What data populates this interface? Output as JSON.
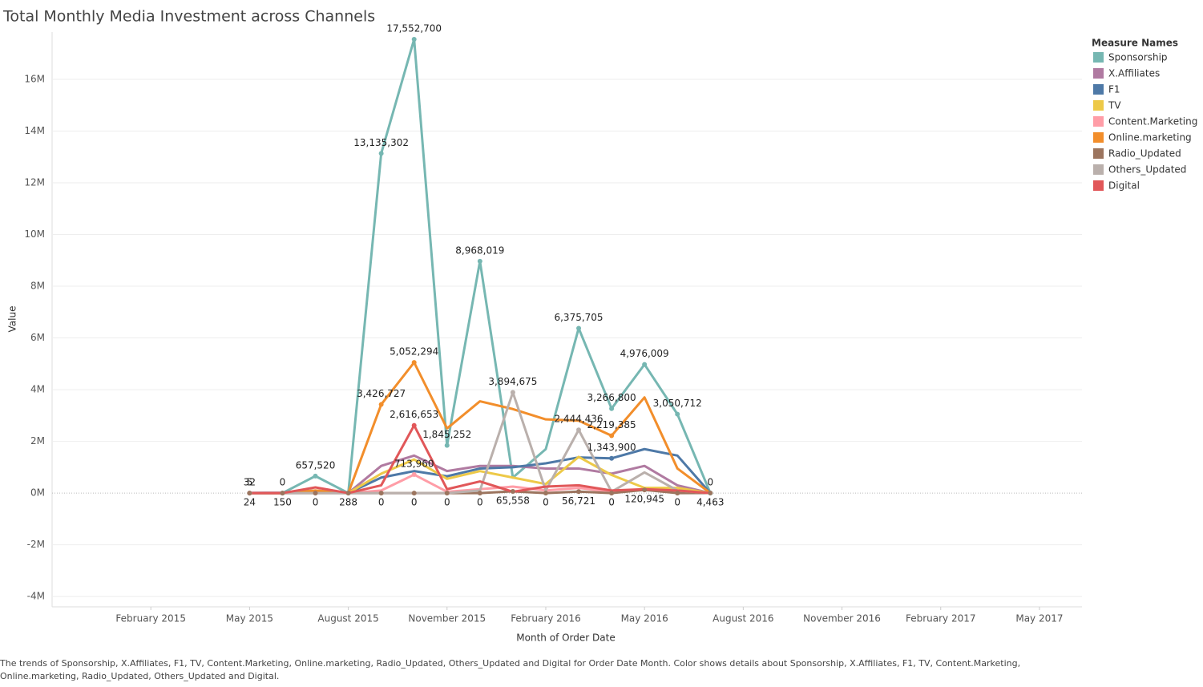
{
  "chart_data": {
    "type": "line",
    "title": "Total Monthly Media Investment across Channels",
    "x_label": "Month of Order Date",
    "y_label": "Value",
    "legend_title": "Measure Names",
    "footnote": "The trends of Sponsorship, X.Affiliates, F1, TV, Content.Marketing, Online.marketing, Radio_Updated, Others_Updated and Digital for Order Date Month.  Color shows details about Sponsorship, X.Affiliates, F1, TV, Content.Marketing, Online.marketing, Radio_Updated, Others_Updated and Digital.",
    "x": [
      "2015-05",
      "2015-06",
      "2015-07",
      "2015-08",
      "2015-09",
      "2015-10",
      "2015-11",
      "2015-12",
      "2016-01",
      "2016-02",
      "2016-03",
      "2016-04",
      "2016-05",
      "2016-06",
      "2016-07"
    ],
    "xlim": [
      "2014-11",
      "2017-06"
    ],
    "xticks": [
      {
        "value": "2015-02",
        "label": "February 2015"
      },
      {
        "value": "2015-05",
        "label": "May 2015"
      },
      {
        "value": "2015-08",
        "label": "August 2015"
      },
      {
        "value": "2015-11",
        "label": "November 2015"
      },
      {
        "value": "2016-02",
        "label": "February 2016"
      },
      {
        "value": "2016-05",
        "label": "May 2016"
      },
      {
        "value": "2016-08",
        "label": "August 2016"
      },
      {
        "value": "2016-11",
        "label": "November 2016"
      },
      {
        "value": "2017-02",
        "label": "February 2017"
      },
      {
        "value": "2017-05",
        "label": "May 2017"
      }
    ],
    "ylim": [
      -4400000,
      17830000
    ],
    "yticks": [
      {
        "value": -4000000,
        "label": "-4M"
      },
      {
        "value": -2000000,
        "label": "-2M"
      },
      {
        "value": 0,
        "label": "0M"
      },
      {
        "value": 2000000,
        "label": "2M"
      },
      {
        "value": 4000000,
        "label": "4M"
      },
      {
        "value": 6000000,
        "label": "6M"
      },
      {
        "value": 8000000,
        "label": "8M"
      },
      {
        "value": 10000000,
        "label": "10M"
      },
      {
        "value": 12000000,
        "label": "12M"
      },
      {
        "value": 14000000,
        "label": "14M"
      },
      {
        "value": 16000000,
        "label": "16M"
      }
    ],
    "grid": true,
    "legend": "right",
    "series": [
      {
        "name": "Sponsorship",
        "color": "#76b7b2",
        "values": [
          5,
          0,
          657520,
          0,
          13135302,
          17552700,
          1845252,
          8968019,
          600000,
          1700000,
          6375705,
          3266800,
          4976009,
          3050712,
          0
        ],
        "value_labels": [
          "5",
          "0",
          "657,520",
          null,
          "13,135,302",
          "17,552,700",
          "1,845,252",
          "8,968,019",
          null,
          null,
          "6,375,705",
          "3,266,800",
          "4,976,009",
          "3,050,712",
          "0"
        ]
      },
      {
        "name": "X.Affiliates",
        "color": "#b07aa1",
        "values": [
          10000,
          20000,
          100000,
          0,
          1050000,
          1450000,
          850000,
          1050000,
          1050000,
          950000,
          950000,
          750000,
          1050000,
          300000,
          0
        ]
      },
      {
        "name": "F1",
        "color": "#4e79a7",
        "values": [
          0,
          0,
          50000,
          0,
          600000,
          850000,
          650000,
          950000,
          1000000,
          1150000,
          1380000,
          1343900,
          1700000,
          1450000,
          0
        ],
        "value_labels": [
          null,
          null,
          null,
          null,
          null,
          null,
          null,
          null,
          null,
          null,
          null,
          "1,343,900",
          null,
          null,
          null
        ]
      },
      {
        "name": "TV",
        "color": "#edc948",
        "values": [
          0,
          0,
          20000,
          0,
          750000,
          1300000,
          550000,
          850000,
          600000,
          350000,
          1400000,
          700000,
          200000,
          200000,
          0
        ]
      },
      {
        "name": "Content.Marketing",
        "color": "#ff9da7",
        "values": [
          32,
          0,
          50000,
          0,
          100000,
          713960,
          50000,
          150000,
          250000,
          100000,
          200000,
          50000,
          150000,
          50000,
          0
        ],
        "value_labels": [
          "32",
          null,
          null,
          null,
          null,
          "713,960",
          null,
          null,
          null,
          null,
          null,
          null,
          null,
          null,
          null
        ]
      },
      {
        "name": "Online.marketing",
        "color": "#f28e2b",
        "values": [
          0,
          0,
          100000,
          0,
          3426727,
          5052294,
          2500000,
          3550000,
          3250000,
          2850000,
          2800000,
          2219385,
          3700000,
          950000,
          0
        ],
        "value_labels": [
          null,
          null,
          null,
          null,
          "3,426,727",
          "5,052,294",
          null,
          null,
          null,
          null,
          null,
          "2,219,385",
          null,
          null,
          null
        ]
      },
      {
        "name": "Radio_Updated",
        "color": "#9c755f",
        "values": [
          24,
          150,
          0,
          288,
          0,
          0,
          0,
          0,
          65558,
          0,
          56721,
          0,
          120945,
          0,
          4463
        ],
        "value_labels": [
          "24",
          "150",
          "0",
          "288",
          "0",
          "0",
          "0",
          "0",
          "65,558",
          "0",
          "56,721",
          "0",
          "120,945",
          "0",
          "4,463"
        ]
      },
      {
        "name": "Others_Updated",
        "color": "#bab0ac",
        "values": [
          0,
          0,
          0,
          0,
          0,
          0,
          0,
          100000,
          3894675,
          100000,
          2444436,
          50000,
          800000,
          100000,
          0
        ],
        "value_labels": [
          null,
          null,
          null,
          null,
          null,
          null,
          null,
          null,
          "3,894,675",
          null,
          "2,444,436",
          null,
          null,
          null,
          null
        ]
      },
      {
        "name": "Digital",
        "color": "#e15759",
        "values": [
          0,
          0,
          220000,
          0,
          300000,
          2616653,
          150000,
          450000,
          50000,
          250000,
          300000,
          100000,
          150000,
          100000,
          0
        ],
        "value_labels": [
          null,
          null,
          null,
          null,
          null,
          "2,616,653",
          null,
          null,
          null,
          null,
          null,
          null,
          null,
          null,
          null
        ]
      }
    ]
  }
}
